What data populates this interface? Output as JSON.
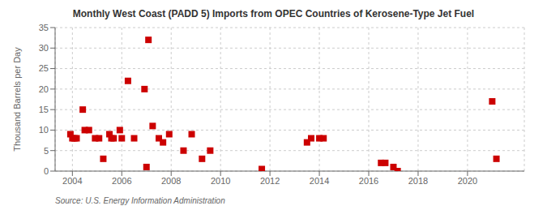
{
  "chart_data": {
    "type": "scatter",
    "title": "Monthly West Coast (PADD 5) Imports from OPEC Countries of Kerosene-Type Jet Fuel",
    "y_label": "Thousand Barrels per Day",
    "annotations": [
      "Source: U.S. Energy Information Administration"
    ],
    "color": "#cc0000",
    "marker": "square",
    "grid": true,
    "xlim": [
      2003.3,
      2022.3
    ],
    "ylim": [
      0,
      35
    ],
    "xticks": [
      2004,
      2006,
      2008,
      2010,
      2012,
      2014,
      2016,
      2018,
      2020
    ],
    "yticks": [
      0,
      5,
      10,
      15,
      20,
      25,
      30,
      35
    ],
    "x": [
      2003.92,
      2004.0,
      2004.08,
      2004.17,
      2004.42,
      2004.5,
      2004.67,
      2004.92,
      2005.08,
      2005.25,
      2005.5,
      2005.58,
      2005.67,
      2005.92,
      2006.0,
      2006.25,
      2006.5,
      2006.92,
      2007.0,
      2007.08,
      2007.25,
      2007.5,
      2007.67,
      2007.92,
      2008.5,
      2008.83,
      2009.25,
      2009.58,
      2011.67,
      2013.5,
      2013.67,
      2014.0,
      2014.17,
      2016.5,
      2016.67,
      2017.0,
      2017.17,
      2021.0,
      2021.17
    ],
    "values": [
      9,
      8,
      8,
      8,
      15,
      10,
      10,
      8,
      8,
      3,
      9,
      8,
      8,
      10,
      8,
      22,
      8,
      20,
      1,
      32,
      11,
      8,
      7,
      9,
      5,
      9,
      3,
      5,
      0.5,
      7,
      8,
      8,
      8,
      2,
      2,
      1,
      0,
      17,
      3
    ]
  }
}
